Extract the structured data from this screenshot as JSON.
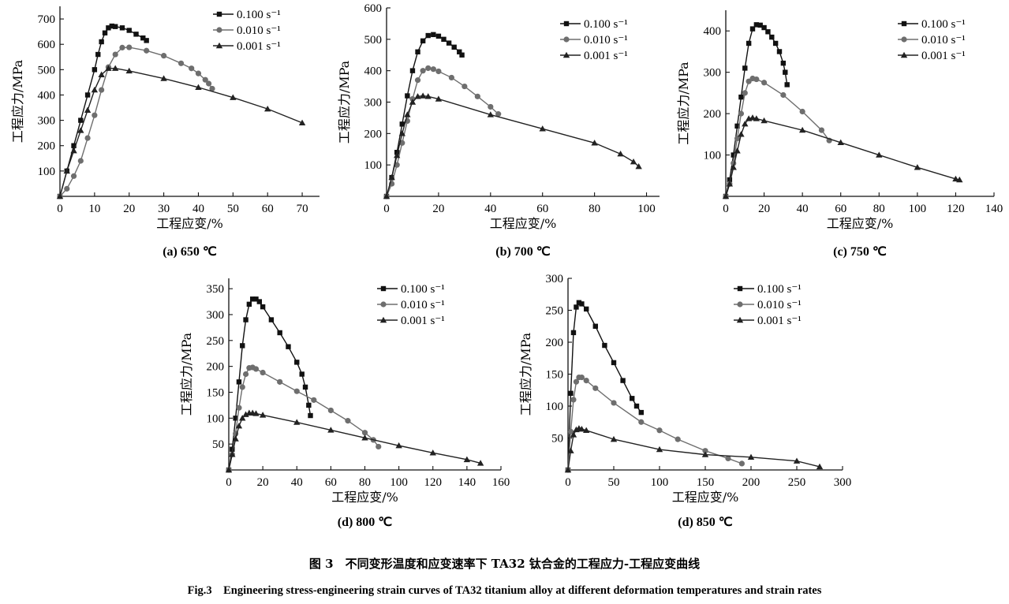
{
  "figure": {
    "caption_cn": "图 3　不同变形温度和应变速率下 TA32 钛合金的工程应力-工程应变曲线",
    "caption_en": "Fig.3　Engineering stress-engineering strain curves of TA32 titanium alloy at different deformation temperatures and strain rates"
  },
  "chart_data": [
    {
      "type": "line",
      "title": "(a) 650 ℃",
      "xlabel": "工程应变/%",
      "ylabel": "工程应力/MPa",
      "xlim": [
        0,
        75
      ],
      "ylim": [
        0,
        750
      ],
      "xticks": [
        0,
        10,
        20,
        30,
        40,
        50,
        60,
        70
      ],
      "yticks": [
        100,
        200,
        300,
        400,
        500,
        600,
        700
      ],
      "legend_position": "top-right",
      "series": [
        {
          "name": "0.100 s⁻¹",
          "marker": "square",
          "x": [
            0,
            2,
            4,
            6,
            8,
            10,
            11,
            12,
            13,
            14,
            15,
            16,
            18,
            20,
            22,
            24,
            25
          ],
          "y": [
            0,
            100,
            200,
            300,
            400,
            500,
            560,
            610,
            645,
            665,
            672,
            670,
            665,
            655,
            640,
            625,
            615
          ]
        },
        {
          "name": "0.010 s⁻¹",
          "marker": "circle",
          "x": [
            0,
            2,
            4,
            6,
            8,
            10,
            12,
            14,
            16,
            18,
            20,
            25,
            30,
            35,
            38,
            40,
            42,
            43,
            44
          ],
          "y": [
            0,
            30,
            80,
            140,
            230,
            320,
            420,
            510,
            560,
            587,
            588,
            575,
            555,
            525,
            505,
            485,
            460,
            445,
            425
          ]
        },
        {
          "name": "0.001 s⁻¹",
          "marker": "triangle",
          "x": [
            0,
            2,
            4,
            6,
            8,
            10,
            12,
            14,
            16,
            20,
            30,
            40,
            50,
            60,
            70
          ],
          "y": [
            0,
            100,
            180,
            260,
            340,
            420,
            480,
            505,
            505,
            495,
            465,
            430,
            390,
            345,
            290
          ]
        }
      ]
    },
    {
      "type": "line",
      "title": "(b) 700 ℃",
      "xlabel": "工程应变/%",
      "ylabel": "工程应力/MPa",
      "xlim": [
        0,
        105
      ],
      "ylim": [
        0,
        600
      ],
      "xticks": [
        0,
        20,
        40,
        60,
        80,
        100
      ],
      "yticks": [
        100,
        200,
        300,
        400,
        500,
        600
      ],
      "legend_position": "top-right",
      "series": [
        {
          "name": "0.100 s⁻¹",
          "marker": "square",
          "x": [
            0,
            2,
            4,
            6,
            8,
            10,
            12,
            14,
            16,
            18,
            20,
            22,
            24,
            26,
            28,
            29
          ],
          "y": [
            0,
            60,
            140,
            230,
            320,
            400,
            460,
            495,
            512,
            515,
            510,
            500,
            488,
            475,
            460,
            450
          ]
        },
        {
          "name": "0.010 s⁻¹",
          "marker": "circle",
          "x": [
            0,
            2,
            4,
            6,
            8,
            10,
            12,
            14,
            16,
            18,
            20,
            25,
            30,
            35,
            40,
            43
          ],
          "y": [
            0,
            40,
            100,
            170,
            240,
            310,
            370,
            400,
            408,
            405,
            398,
            378,
            350,
            318,
            285,
            262
          ]
        },
        {
          "name": "0.001 s⁻¹",
          "marker": "triangle",
          "x": [
            0,
            2,
            4,
            6,
            8,
            10,
            12,
            14,
            16,
            20,
            40,
            60,
            80,
            90,
            95,
            97
          ],
          "y": [
            0,
            60,
            130,
            200,
            260,
            300,
            318,
            320,
            318,
            310,
            260,
            215,
            170,
            135,
            110,
            95
          ]
        }
      ]
    },
    {
      "type": "line",
      "title": "(c) 750 ℃",
      "xlabel": "工程应变/%",
      "ylabel": "工程应力/MPa",
      "xlim": [
        0,
        140
      ],
      "ylim": [
        0,
        450
      ],
      "xticks": [
        0,
        20,
        40,
        60,
        80,
        100,
        120,
        140
      ],
      "yticks": [
        100,
        200,
        300,
        400
      ],
      "legend_position": "top-right",
      "series": [
        {
          "name": "0.100 s⁻¹",
          "marker": "square",
          "x": [
            0,
            2,
            4,
            6,
            8,
            10,
            12,
            14,
            16,
            18,
            20,
            22,
            24,
            26,
            28,
            30,
            31,
            32
          ],
          "y": [
            0,
            40,
            100,
            170,
            240,
            310,
            370,
            405,
            415,
            414,
            408,
            398,
            385,
            370,
            350,
            322,
            300,
            270
          ]
        },
        {
          "name": "0.010 s⁻¹",
          "marker": "circle",
          "x": [
            0,
            2,
            4,
            6,
            8,
            10,
            12,
            14,
            16,
            20,
            30,
            40,
            50,
            54
          ],
          "y": [
            0,
            30,
            80,
            140,
            200,
            250,
            278,
            285,
            283,
            275,
            245,
            205,
            160,
            135
          ]
        },
        {
          "name": "0.001 s⁻¹",
          "marker": "triangle",
          "x": [
            0,
            2,
            4,
            6,
            8,
            10,
            12,
            14,
            16,
            20,
            40,
            60,
            80,
            100,
            120,
            122
          ],
          "y": [
            0,
            30,
            70,
            110,
            150,
            175,
            188,
            190,
            188,
            183,
            160,
            130,
            100,
            70,
            42,
            40
          ]
        }
      ]
    },
    {
      "type": "line",
      "title": "(d) 800 ℃",
      "xlabel": "工程应变/%",
      "ylabel": "工程应力/MPa",
      "xlim": [
        0,
        160
      ],
      "ylim": [
        0,
        370
      ],
      "xticks": [
        0,
        20,
        40,
        60,
        80,
        100,
        120,
        140,
        160
      ],
      "yticks": [
        50,
        100,
        150,
        200,
        250,
        300,
        350
      ],
      "legend_position": "top-right",
      "series": [
        {
          "name": "0.100 s⁻¹",
          "marker": "square",
          "x": [
            0,
            2,
            4,
            6,
            8,
            10,
            12,
            14,
            16,
            18,
            20,
            25,
            30,
            35,
            40,
            43,
            45,
            47,
            48
          ],
          "y": [
            0,
            40,
            100,
            170,
            240,
            290,
            320,
            330,
            330,
            325,
            315,
            290,
            265,
            238,
            208,
            185,
            160,
            125,
            105
          ]
        },
        {
          "name": "0.010 s⁻¹",
          "marker": "circle",
          "x": [
            0,
            2,
            4,
            6,
            8,
            10,
            12,
            14,
            16,
            20,
            30,
            40,
            50,
            60,
            70,
            80,
            85,
            88
          ],
          "y": [
            0,
            30,
            70,
            120,
            160,
            185,
            197,
            198,
            195,
            188,
            170,
            152,
            135,
            115,
            95,
            72,
            58,
            45
          ]
        },
        {
          "name": "0.001 s⁻¹",
          "marker": "triangle",
          "x": [
            0,
            2,
            4,
            6,
            8,
            10,
            12,
            14,
            16,
            20,
            40,
            60,
            80,
            100,
            120,
            140,
            148
          ],
          "y": [
            0,
            30,
            60,
            85,
            100,
            107,
            110,
            110,
            109,
            106,
            92,
            77,
            62,
            47,
            33,
            20,
            13
          ]
        }
      ]
    },
    {
      "type": "line",
      "title": "(d) 850 ℃",
      "xlabel": "工程应变/%",
      "ylabel": "工程应力/MPa",
      "xlim": [
        0,
        300
      ],
      "ylim": [
        0,
        300
      ],
      "xticks": [
        0,
        50,
        100,
        150,
        200,
        250,
        300
      ],
      "yticks": [
        50,
        100,
        150,
        200,
        250,
        300
      ],
      "legend_position": "top-right",
      "series": [
        {
          "name": "0.100 s⁻¹",
          "marker": "square",
          "x": [
            0,
            3,
            6,
            9,
            12,
            15,
            20,
            30,
            40,
            50,
            60,
            70,
            75,
            80
          ],
          "y": [
            0,
            120,
            215,
            255,
            262,
            260,
            252,
            225,
            195,
            168,
            140,
            112,
            100,
            90
          ]
        },
        {
          "name": "0.010 s⁻¹",
          "marker": "circle",
          "x": [
            0,
            3,
            6,
            9,
            12,
            15,
            20,
            30,
            50,
            80,
            100,
            120,
            150,
            175,
            190
          ],
          "y": [
            0,
            60,
            110,
            138,
            145,
            145,
            140,
            128,
            105,
            75,
            62,
            48,
            30,
            18,
            10
          ]
        },
        {
          "name": "0.001 s⁻¹",
          "marker": "triangle",
          "x": [
            0,
            3,
            6,
            9,
            12,
            15,
            20,
            50,
            100,
            150,
            200,
            250,
            275
          ],
          "y": [
            0,
            30,
            55,
            63,
            65,
            64,
            62,
            48,
            32,
            24,
            20,
            14,
            5
          ]
        }
      ]
    }
  ]
}
